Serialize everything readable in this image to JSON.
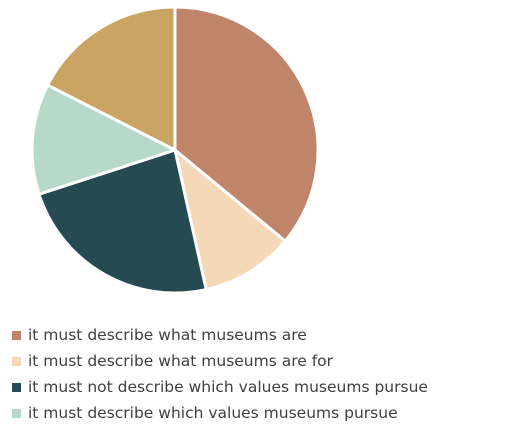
{
  "chart_data": {
    "type": "pie",
    "title": "",
    "slices": [
      {
        "label": "",
        "value": 36,
        "color": "#BF846A",
        "in_legend": false
      },
      {
        "label": "",
        "value": 10.5,
        "color": "#F5D8B8",
        "in_legend": false
      },
      {
        "label": "",
        "value": 23.5,
        "color": "#264A52",
        "in_legend": false
      },
      {
        "label": "",
        "value": 12.5,
        "color": "#B7D9CA",
        "in_legend": false
      },
      {
        "label": "",
        "value": 17.5,
        "color": "#C9A462",
        "in_legend": false
      }
    ],
    "legend": {
      "placement": "bottom",
      "entries": [
        {
          "label": "it must describe what museums are",
          "color": "#BF846A"
        },
        {
          "label": "it must describe what museums are for",
          "color": "#F5D8B8"
        },
        {
          "label": "it must not describe which values museums pursue",
          "color": "#264A52"
        },
        {
          "label": "it must describe which values museums pursue",
          "color": "#B7D9CA"
        }
      ]
    }
  }
}
